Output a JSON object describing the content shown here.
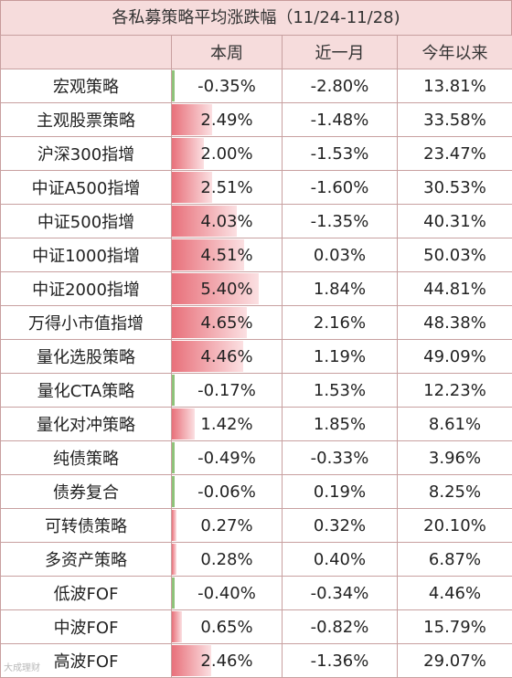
{
  "title": "各私募策略平均涨跌幅（11/24-11/28)",
  "headers": [
    "",
    "本周",
    "近一月",
    "今年以来"
  ],
  "rows": [
    {
      "name": "宏观策略",
      "week": "-0.35%",
      "month": "-2.80%",
      "ytd": "13.81%",
      "week_value": -0.35
    },
    {
      "name": "主观股票策略",
      "week": "2.49%",
      "month": "-1.48%",
      "ytd": "33.58%",
      "week_value": 2.49
    },
    {
      "name": "沪深300指增",
      "week": "2.00%",
      "month": "-1.53%",
      "ytd": "23.47%",
      "week_value": 2.0
    },
    {
      "name": "中证A500指增",
      "week": "2.51%",
      "month": "-1.60%",
      "ytd": "30.53%",
      "week_value": 2.51
    },
    {
      "name": "中证500指增",
      "week": "4.03%",
      "month": "-1.35%",
      "ytd": "40.31%",
      "week_value": 4.03
    },
    {
      "name": "中证1000指增",
      "week": "4.51%",
      "month": "0.03%",
      "ytd": "50.03%",
      "week_value": 4.51
    },
    {
      "name": "中证2000指增",
      "week": "5.40%",
      "month": "1.84%",
      "ytd": "44.81%",
      "week_value": 5.4
    },
    {
      "name": "万得小市值指增",
      "week": "4.65%",
      "month": "2.16%",
      "ytd": "48.38%",
      "week_value": 4.65
    },
    {
      "name": "量化选股策略",
      "week": "4.46%",
      "month": "1.19%",
      "ytd": "49.09%",
      "week_value": 4.46
    },
    {
      "name": "量化CTA策略",
      "week": "-0.17%",
      "month": "1.53%",
      "ytd": "12.23%",
      "week_value": -0.17
    },
    {
      "name": "量化对冲策略",
      "week": "1.42%",
      "month": "1.85%",
      "ytd": "8.61%",
      "week_value": 1.42
    },
    {
      "name": "纯债策略",
      "week": "-0.49%",
      "month": "-0.33%",
      "ytd": "3.96%",
      "week_value": -0.49
    },
    {
      "name": "债券复合",
      "week": "-0.06%",
      "month": "0.19%",
      "ytd": "8.25%",
      "week_value": -0.06
    },
    {
      "name": "可转债策略",
      "week": "0.27%",
      "month": "0.32%",
      "ytd": "20.10%",
      "week_value": 0.27
    },
    {
      "name": "多资产策略",
      "week": "0.28%",
      "month": "0.40%",
      "ytd": "6.87%",
      "week_value": 0.28
    },
    {
      "name": "低波FOF",
      "week": "-0.40%",
      "month": "-0.34%",
      "ytd": "4.46%",
      "week_value": -0.4
    },
    {
      "name": "中波FOF",
      "week": "0.65%",
      "month": "-0.82%",
      "ytd": "15.79%",
      "week_value": 0.65
    },
    {
      "name": "高波FOF",
      "week": "2.46%",
      "month": "-1.36%",
      "ytd": "29.07%",
      "week_value": 2.46
    }
  ],
  "watermark": "大成理财",
  "colors": {
    "header_bg": "#f6dcdc",
    "border": "#c8a0a0",
    "bar_pos": "#e8707a",
    "bar_neg": "#8fc27a"
  }
}
